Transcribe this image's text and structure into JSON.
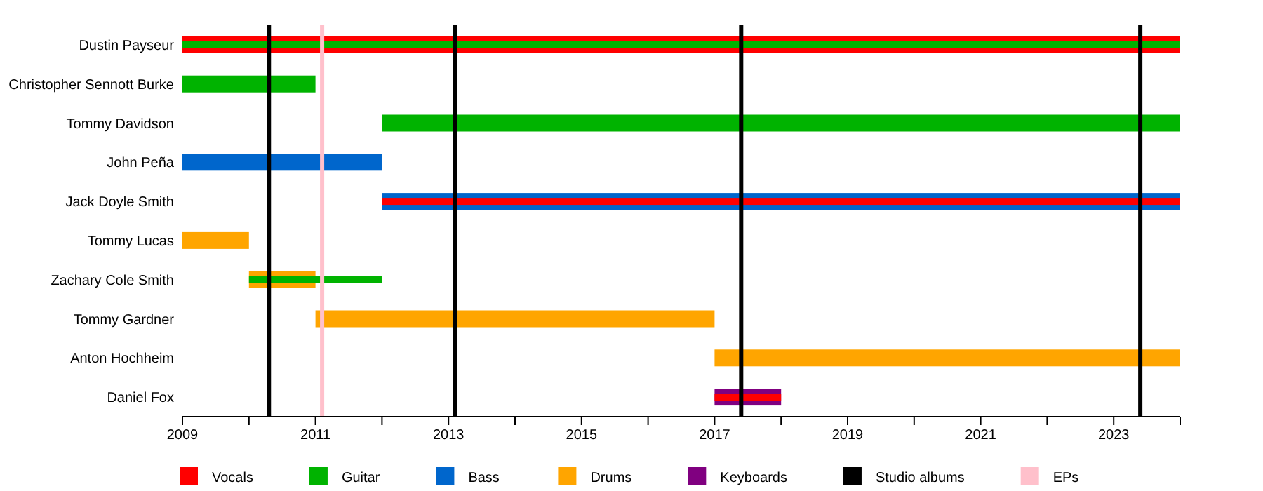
{
  "chart_data": {
    "type": "bar",
    "orientation": "horizontal",
    "categories": [
      "Dustin Payseur",
      "Christopher Sennott Burke",
      "Tommy Davidson",
      "John Peña",
      "Jack Doyle Smith",
      "Tommy Lucas",
      "Zachary Cole Smith",
      "Tommy Gardner",
      "Anton Hochheim",
      "Daniel Fox"
    ],
    "series": [
      {
        "name": "Vocals",
        "color": "#ff0000",
        "base": [
          2009,
          null,
          null,
          null,
          null,
          null,
          null,
          null,
          null,
          null
        ],
        "values": [
          15,
          null,
          null,
          null,
          null,
          null,
          null,
          null,
          null,
          null
        ]
      },
      {
        "name": "Guitar",
        "color": "#00b300",
        "base": [
          null,
          2009,
          2012,
          null,
          null,
          null,
          null,
          null,
          null,
          null
        ],
        "values": [
          null,
          2,
          12,
          null,
          null,
          null,
          null,
          null,
          null,
          null
        ]
      },
      {
        "name": "Bass",
        "color": "#0066cc",
        "base": [
          null,
          null,
          null,
          2009,
          2012,
          null,
          null,
          null,
          null,
          null
        ],
        "values": [
          null,
          null,
          null,
          3,
          12,
          null,
          null,
          null,
          null,
          null
        ]
      },
      {
        "name": "Drums",
        "color": "#ffa500",
        "base": [
          null,
          null,
          null,
          null,
          null,
          2009,
          2010,
          2011,
          2017,
          null
        ],
        "values": [
          null,
          null,
          null,
          null,
          null,
          1,
          1,
          6,
          7,
          null
        ]
      },
      {
        "name": "Keyboards",
        "color": "#800080",
        "base": [
          null,
          null,
          null,
          null,
          null,
          null,
          null,
          null,
          null,
          2017
        ],
        "values": [
          null,
          null,
          null,
          null,
          null,
          null,
          null,
          null,
          null,
          1
        ]
      },
      {
        "color": "#00b300",
        "base": [
          2009,
          null,
          null,
          null,
          null,
          null,
          2010,
          null,
          null,
          null
        ],
        "values": [
          15,
          null,
          null,
          null,
          null,
          null,
          2,
          null,
          null,
          null
        ]
      },
      {
        "color": "#ff0000",
        "base": [
          null,
          null,
          null,
          null,
          2012,
          null,
          null,
          null,
          null,
          2017
        ],
        "values": [
          null,
          null,
          null,
          null,
          12,
          null,
          null,
          null,
          null,
          1
        ]
      }
    ],
    "ref_lines": [
      {
        "axis": "x",
        "value": 2010.3,
        "label": "Studio albums",
        "color": "#000000"
      },
      {
        "axis": "x",
        "value": 2013.1,
        "color": "#000000"
      },
      {
        "axis": "x",
        "value": 2017.4,
        "color": "#000000"
      },
      {
        "axis": "x",
        "value": 2023.4,
        "color": "#000000"
      },
      {
        "axis": "x",
        "value": 2011.1,
        "label": "EPs",
        "color": "#ffc0cb"
      }
    ],
    "xlim": [
      2009,
      2024
    ],
    "xticks": [
      2009,
      {
        "value": 2010,
        "label": null
      },
      2011,
      {
        "value": 2012,
        "label": null
      },
      2013,
      {
        "value": 2014,
        "label": null
      },
      2015,
      {
        "value": 2016,
        "label": null
      },
      2017,
      {
        "value": 2018,
        "label": null
      },
      2019,
      {
        "value": 2020,
        "label": null
      },
      2021,
      {
        "value": 2022,
        "label": null
      },
      2023,
      {
        "value": 2024,
        "label": null
      }
    ],
    "legend": "bottom",
    "grid": false
  }
}
